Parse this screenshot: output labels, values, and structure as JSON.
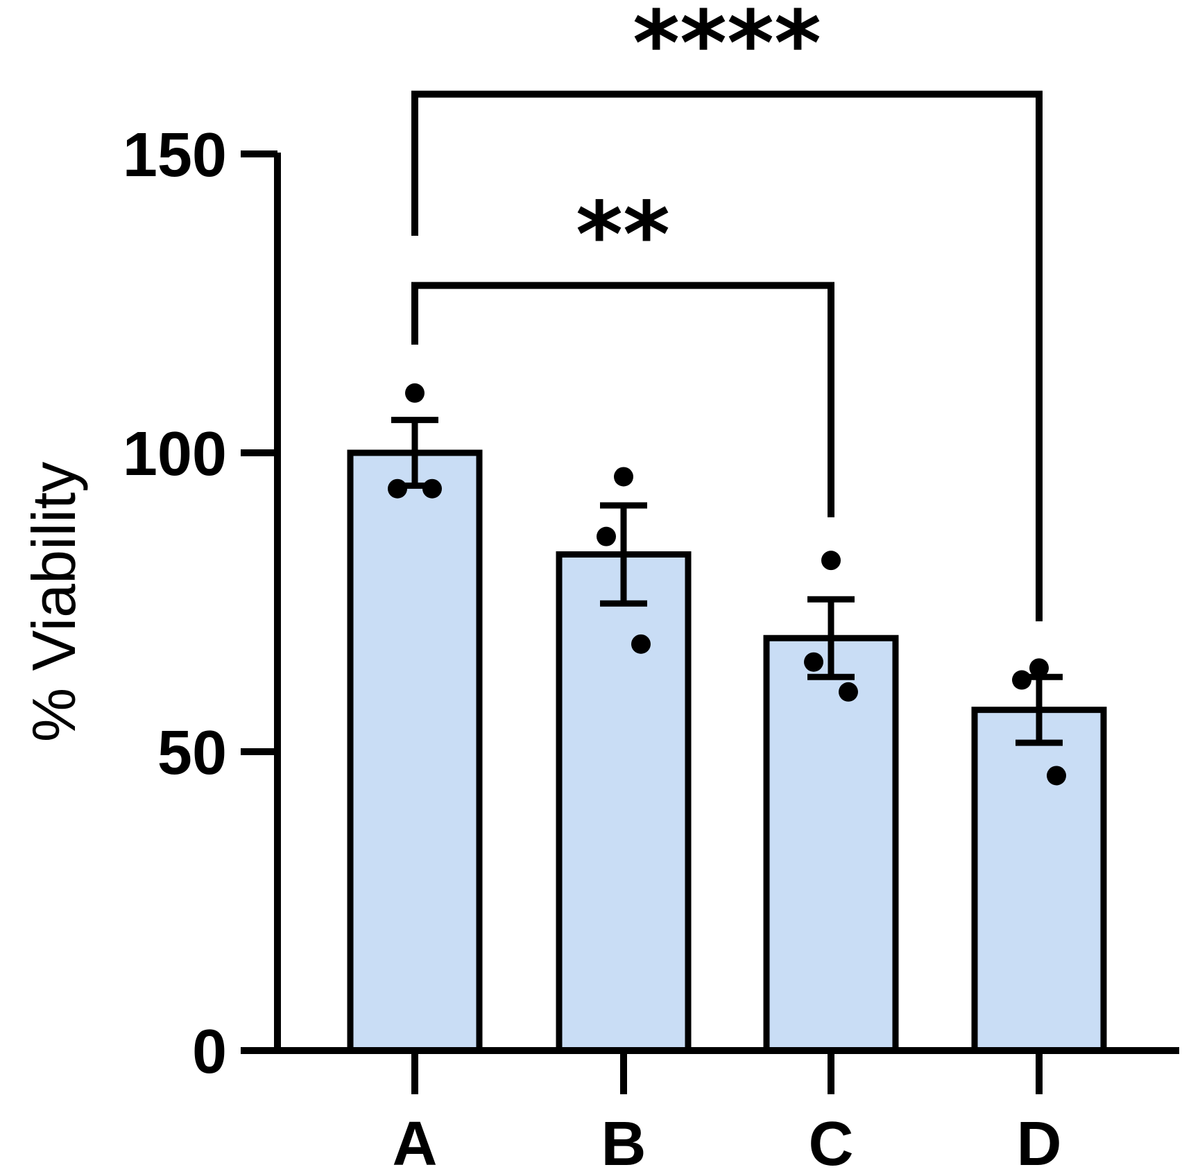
{
  "chart_data": {
    "type": "bar",
    "title": "",
    "xlabel": "",
    "ylabel": "% Viability",
    "ylim": [
      0,
      150
    ],
    "yticks": [
      0,
      50,
      100,
      150
    ],
    "categories": [
      "A",
      "B",
      "C",
      "D"
    ],
    "values": [
      100,
      83,
      69,
      57
    ],
    "error": [
      5.5,
      8.2,
      6.5,
      5.5
    ],
    "points": [
      [
        110,
        94,
        94
      ],
      [
        96,
        86,
        68
      ],
      [
        82,
        65,
        60
      ],
      [
        64,
        62,
        46
      ]
    ],
    "bar_color": "#c9ddf5",
    "bar_edge_color": "#000000",
    "significance": [
      {
        "from": "A",
        "to": "C",
        "label": "**",
        "level": 128
      },
      {
        "from": "A",
        "to": "D",
        "label": "****",
        "level": 160
      }
    ]
  }
}
